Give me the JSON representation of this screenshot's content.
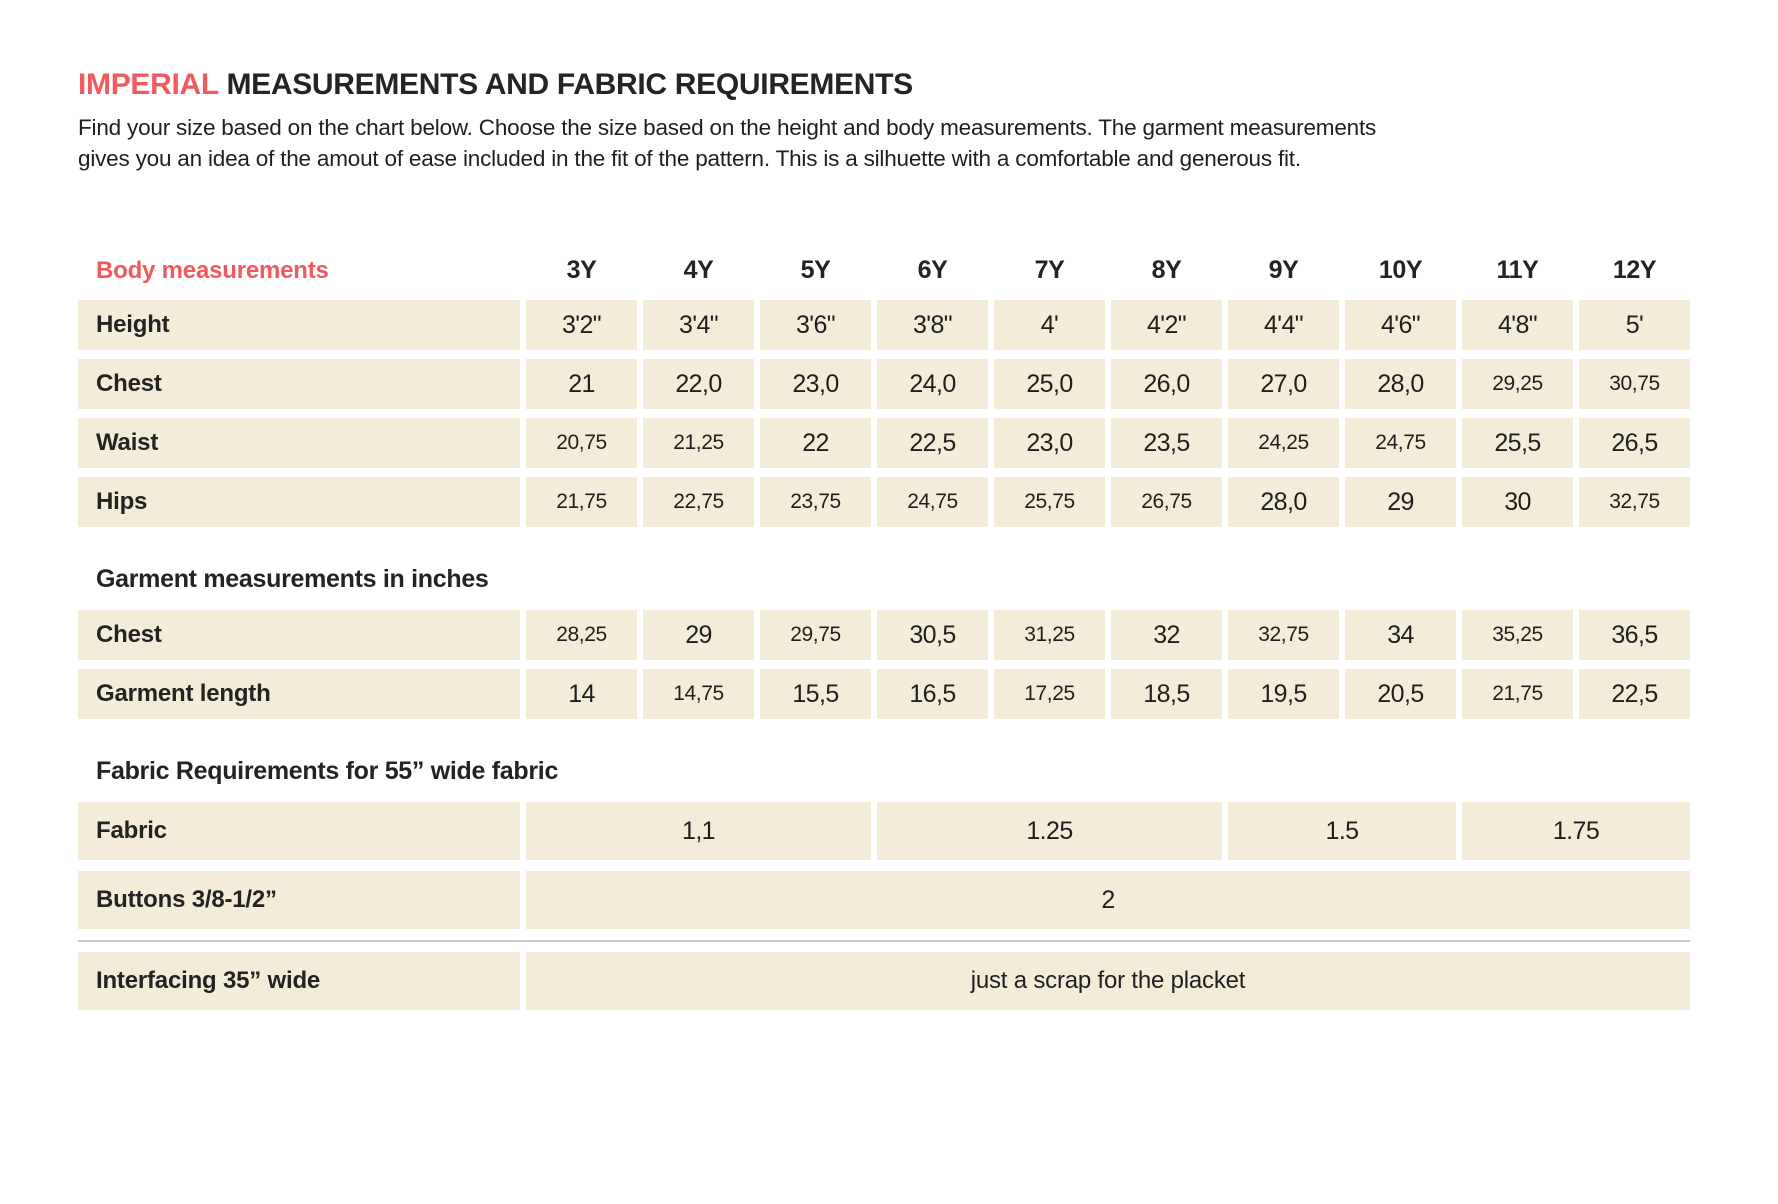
{
  "colors": {
    "accent": "#f15a5c",
    "cell_background": "#f3ecd9",
    "text": "#1f1f1d"
  },
  "header": {
    "title_accent": "IMPERIAL",
    "title_rest": " MEASUREMENTS AND FABRIC REQUIREMENTS",
    "intro_line1": "Find your size based on the chart below. Choose the size based on the height and body measurements. The garment measurements",
    "intro_line2": "gives you an idea of the amout of ease included in the fit of the pattern. This is a silhuette with a comfortable and generous fit."
  },
  "table": {
    "header_label": "Body measurements",
    "sizes": [
      "3Y",
      "4Y",
      "5Y",
      "6Y",
      "7Y",
      "8Y",
      "9Y",
      "10Y",
      "11Y",
      "12Y"
    ],
    "body_rows": [
      {
        "label": "Height",
        "values": [
          "3'2\"",
          "3'4\"",
          "3'6\"",
          "3'8\"",
          "4'",
          "4'2\"",
          "4'4\"",
          "4'6\"",
          "4'8\"",
          "5'"
        ]
      },
      {
        "label": "Chest",
        "values": [
          "21",
          "22,0",
          "23,0",
          "24,0",
          "25,0",
          "26,0",
          "27,0",
          "28,0",
          "29,25",
          "30,75"
        ]
      },
      {
        "label": "Waist",
        "values": [
          "20,75",
          "21,25",
          "22",
          "22,5",
          "23,0",
          "23,5",
          "24,25",
          "24,75",
          "25,5",
          "26,5"
        ]
      },
      {
        "label": "Hips",
        "values": [
          "21,75",
          "22,75",
          "23,75",
          "24,75",
          "25,75",
          "26,75",
          "28,0",
          "29",
          "30",
          "32,75"
        ]
      }
    ],
    "garment_heading": "Garment measurements in inches",
    "garment_rows": [
      {
        "label": "Chest",
        "values": [
          "28,25",
          "29",
          "29,75",
          "30,5",
          "31,25",
          "32",
          "32,75",
          "34",
          "35,25",
          "36,5"
        ]
      },
      {
        "label": "Garment length",
        "values": [
          "14",
          "14,75",
          "15,5",
          "16,5",
          "17,25",
          "18,5",
          "19,5",
          "20,5",
          "21,75",
          "22,5"
        ]
      }
    ],
    "fabric_heading": "Fabric Requirements for  55” wide fabric",
    "fabric_row": {
      "label": "Fabric",
      "values": [
        "1,1",
        "1.25",
        "1.5",
        "1.75"
      ],
      "spans": [
        3,
        3,
        2,
        2
      ]
    },
    "buttons_row": {
      "label": "Buttons 3/8-1/2”",
      "value": "2"
    },
    "interfacing_row": {
      "label": "Interfacing  35” wide",
      "value": "just a scrap for the placket"
    }
  }
}
